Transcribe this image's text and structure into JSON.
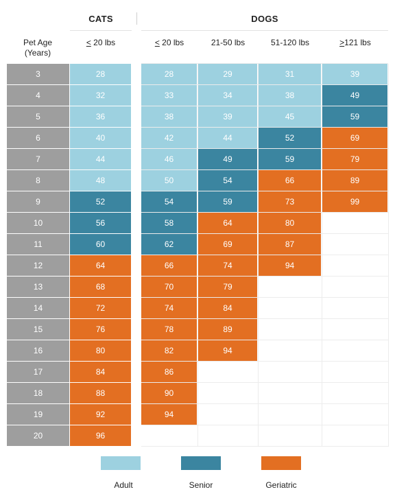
{
  "chart_data": {
    "type": "table",
    "title": "",
    "groups": [
      "CATS",
      "DOGS"
    ],
    "row_header": {
      "line1": "Pet Age",
      "line2": "(Years)"
    },
    "columns": [
      {
        "group": "CATS",
        "prefix": "<",
        "rest": " 20 lbs"
      },
      {
        "group": "DOGS",
        "prefix": "<",
        "rest": " 20 lbs"
      },
      {
        "group": "DOGS",
        "prefix": "",
        "rest": "21-50 lbs"
      },
      {
        "group": "DOGS",
        "prefix": "",
        "rest": "51-120 lbs"
      },
      {
        "group": "DOGS",
        "prefix": ">",
        "rest": "121 lbs"
      }
    ],
    "ages": [
      3,
      4,
      5,
      6,
      7,
      8,
      9,
      10,
      11,
      12,
      13,
      14,
      15,
      16,
      17,
      18,
      19,
      20
    ],
    "cells": [
      [
        {
          "v": 28,
          "c": "adult"
        },
        {
          "v": 28,
          "c": "adult"
        },
        {
          "v": 29,
          "c": "adult"
        },
        {
          "v": 31,
          "c": "adult"
        },
        {
          "v": 39,
          "c": "adult"
        }
      ],
      [
        {
          "v": 32,
          "c": "adult"
        },
        {
          "v": 33,
          "c": "adult"
        },
        {
          "v": 34,
          "c": "adult"
        },
        {
          "v": 38,
          "c": "adult"
        },
        {
          "v": 49,
          "c": "senior"
        }
      ],
      [
        {
          "v": 36,
          "c": "adult"
        },
        {
          "v": 38,
          "c": "adult"
        },
        {
          "v": 39,
          "c": "adult"
        },
        {
          "v": 45,
          "c": "adult"
        },
        {
          "v": 59,
          "c": "senior"
        }
      ],
      [
        {
          "v": 40,
          "c": "adult"
        },
        {
          "v": 42,
          "c": "adult"
        },
        {
          "v": 44,
          "c": "adult"
        },
        {
          "v": 52,
          "c": "senior"
        },
        {
          "v": 69,
          "c": "geriatric"
        }
      ],
      [
        {
          "v": 44,
          "c": "adult"
        },
        {
          "v": 46,
          "c": "adult"
        },
        {
          "v": 49,
          "c": "senior"
        },
        {
          "v": 59,
          "c": "senior"
        },
        {
          "v": 79,
          "c": "geriatric"
        }
      ],
      [
        {
          "v": 48,
          "c": "adult"
        },
        {
          "v": 50,
          "c": "adult"
        },
        {
          "v": 54,
          "c": "senior"
        },
        {
          "v": 66,
          "c": "geriatric"
        },
        {
          "v": 89,
          "c": "geriatric"
        }
      ],
      [
        {
          "v": 52,
          "c": "senior"
        },
        {
          "v": 54,
          "c": "senior"
        },
        {
          "v": 59,
          "c": "senior"
        },
        {
          "v": 73,
          "c": "geriatric"
        },
        {
          "v": 99,
          "c": "geriatric"
        }
      ],
      [
        {
          "v": 56,
          "c": "senior"
        },
        {
          "v": 58,
          "c": "senior"
        },
        {
          "v": 64,
          "c": "geriatric"
        },
        {
          "v": 80,
          "c": "geriatric"
        },
        null
      ],
      [
        {
          "v": 60,
          "c": "senior"
        },
        {
          "v": 62,
          "c": "senior"
        },
        {
          "v": 69,
          "c": "geriatric"
        },
        {
          "v": 87,
          "c": "geriatric"
        },
        null
      ],
      [
        {
          "v": 64,
          "c": "geriatric"
        },
        {
          "v": 66,
          "c": "geriatric"
        },
        {
          "v": 74,
          "c": "geriatric"
        },
        {
          "v": 94,
          "c": "geriatric"
        },
        null
      ],
      [
        {
          "v": 68,
          "c": "geriatric"
        },
        {
          "v": 70,
          "c": "geriatric"
        },
        {
          "v": 79,
          "c": "geriatric"
        },
        null,
        null
      ],
      [
        {
          "v": 72,
          "c": "geriatric"
        },
        {
          "v": 74,
          "c": "geriatric"
        },
        {
          "v": 84,
          "c": "geriatric"
        },
        null,
        null
      ],
      [
        {
          "v": 76,
          "c": "geriatric"
        },
        {
          "v": 78,
          "c": "geriatric"
        },
        {
          "v": 89,
          "c": "geriatric"
        },
        null,
        null
      ],
      [
        {
          "v": 80,
          "c": "geriatric"
        },
        {
          "v": 82,
          "c": "geriatric"
        },
        {
          "v": 94,
          "c": "geriatric"
        },
        null,
        null
      ],
      [
        {
          "v": 84,
          "c": "geriatric"
        },
        {
          "v": 86,
          "c": "geriatric"
        },
        null,
        null,
        null
      ],
      [
        {
          "v": 88,
          "c": "geriatric"
        },
        {
          "v": 90,
          "c": "geriatric"
        },
        null,
        null,
        null
      ],
      [
        {
          "v": 92,
          "c": "geriatric"
        },
        {
          "v": 94,
          "c": "geriatric"
        },
        null,
        null,
        null
      ],
      [
        {
          "v": 96,
          "c": "geriatric"
        },
        null,
        null,
        null,
        null
      ]
    ],
    "legend": [
      {
        "key": "adult",
        "label": "Adult",
        "color": "#9dd1e0"
      },
      {
        "key": "senior",
        "label": "Senior",
        "color": "#3b85a0"
      },
      {
        "key": "geriatric",
        "label": "Geriatric",
        "color": "#e36f22"
      }
    ],
    "colors": {
      "age": "#9e9e9e",
      "adult": "#9dd1e0",
      "senior": "#3b85a0",
      "geriatric": "#e36f22"
    }
  }
}
